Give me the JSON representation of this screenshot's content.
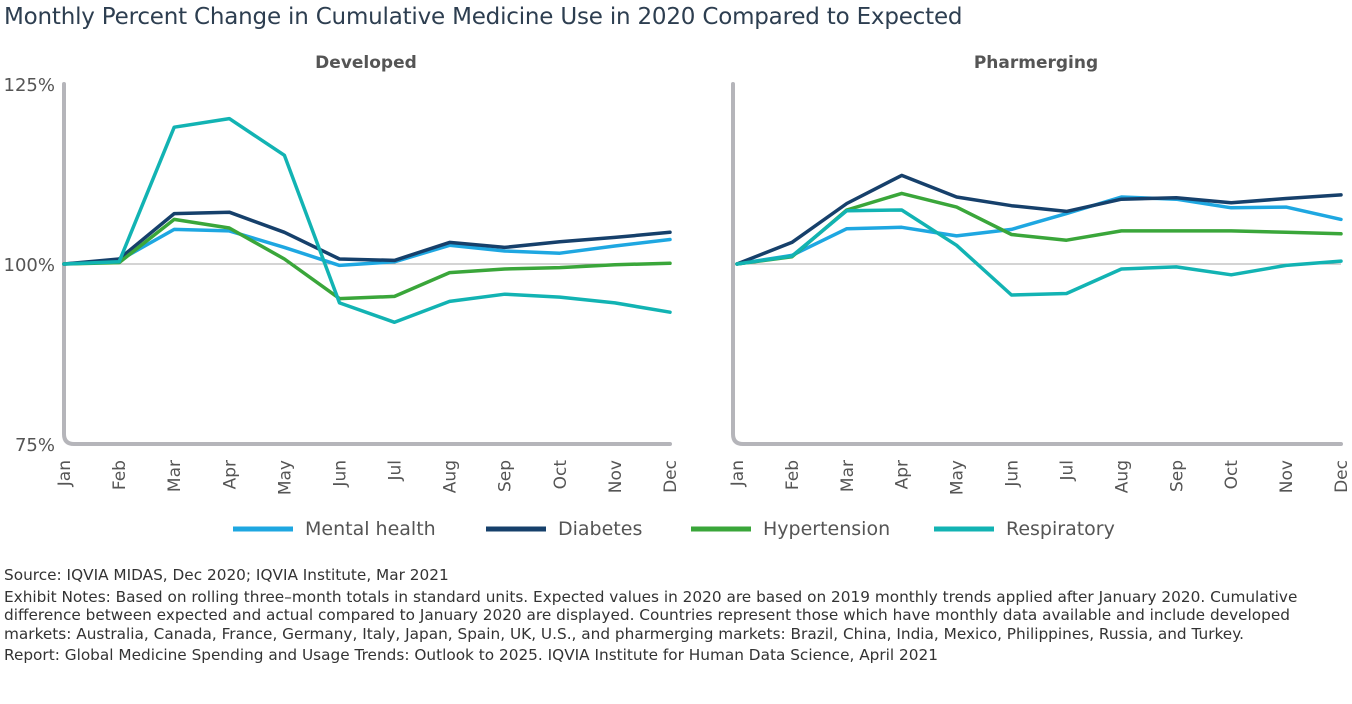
{
  "title": "Monthly Percent Change in Cumulative Medicine Use in 2020 Compared to Expected",
  "colors": {
    "mental_health": "#1ea7e1",
    "diabetes": "#16406b",
    "hypertension": "#3aa63a",
    "respiratory": "#12b3b3",
    "axis": "#b5b5ba",
    "reference": "#aaaaaa"
  },
  "chart_data": [
    {
      "type": "line",
      "title": "Developed",
      "categories": [
        "Jan",
        "Feb",
        "Mar",
        "Apr",
        "May",
        "Jun",
        "Jul",
        "Aug",
        "Sep",
        "Oct",
        "Nov",
        "Dec"
      ],
      "y_ticks": [
        "125%",
        "100%",
        "75%"
      ],
      "ylim": [
        75,
        125
      ],
      "reference_line": 100,
      "series": [
        {
          "name": "Mental health",
          "color_key": "mental_health",
          "values": [
            100,
            100.5,
            104.8,
            104.6,
            102.3,
            99.8,
            100.3,
            102.6,
            101.8,
            101.5,
            102.5,
            103.4
          ]
        },
        {
          "name": "Diabetes",
          "color_key": "diabetes",
          "values": [
            100,
            100.7,
            107,
            107.2,
            104.4,
            100.7,
            100.5,
            103,
            102.3,
            103.1,
            103.7,
            104.4
          ]
        },
        {
          "name": "Hypertension",
          "color_key": "hypertension",
          "values": [
            100,
            100.2,
            106.2,
            105,
            100.7,
            95.2,
            95.5,
            98.8,
            99.3,
            99.5,
            99.9,
            100.1
          ]
        },
        {
          "name": "Respiratory",
          "color_key": "respiratory",
          "values": [
            100,
            100.3,
            119,
            120.2,
            115.1,
            94.6,
            91.9,
            94.8,
            95.8,
            95.4,
            94.6,
            93.3
          ]
        }
      ]
    },
    {
      "type": "line",
      "title": "Pharmerging",
      "categories": [
        "Jan",
        "Feb",
        "Mar",
        "Apr",
        "May",
        "Jun",
        "Jul",
        "Aug",
        "Sep",
        "Oct",
        "Nov",
        "Dec"
      ],
      "ylim": [
        75,
        125
      ],
      "reference_line": 100,
      "series": [
        {
          "name": "Mental health",
          "color_key": "mental_health",
          "values": [
            100,
            101.2,
            104.9,
            105.1,
            103.9,
            104.8,
            107,
            109.3,
            109,
            107.8,
            107.9,
            106.2
          ]
        },
        {
          "name": "Diabetes",
          "color_key": "diabetes",
          "values": [
            100,
            103,
            108.4,
            112.3,
            109.3,
            108.1,
            107.3,
            109,
            109.2,
            108.5,
            109.1,
            109.6
          ]
        },
        {
          "name": "Hypertension",
          "color_key": "hypertension",
          "values": [
            100,
            101,
            107.5,
            109.8,
            107.9,
            104.1,
            103.3,
            104.6,
            104.6,
            104.6,
            104.4,
            104.2
          ]
        },
        {
          "name": "Respiratory",
          "color_key": "respiratory",
          "values": [
            100,
            101.1,
            107.4,
            107.5,
            102.6,
            95.7,
            95.9,
            99.3,
            99.6,
            98.5,
            99.8,
            100.4
          ]
        }
      ]
    }
  ],
  "legend": [
    "Mental health",
    "Diabetes",
    "Hypertension",
    "Respiratory"
  ],
  "notes": {
    "source": "Source: IQVIA MIDAS, Dec 2020; IQVIA Institute, Mar 2021",
    "exhibit": "Exhibit Notes: Based on rolling three–month totals in standard units. Expected values in 2020 are based on 2019 monthly trends applied after January 2020. Cumulative difference between expected and actual compared to January 2020 are displayed. Countries represent those which have monthly data available and include developed markets: Australia, Canada, France, Germany, Italy, Japan, Spain, UK, U.S., and pharmerging markets: Brazil, China, India, Mexico, Philippines, Russia, and Turkey.",
    "report": "Report: Global Medicine Spending and Usage Trends: Outlook to 2025. IQVIA Institute for Human Data Science, April 2021"
  }
}
